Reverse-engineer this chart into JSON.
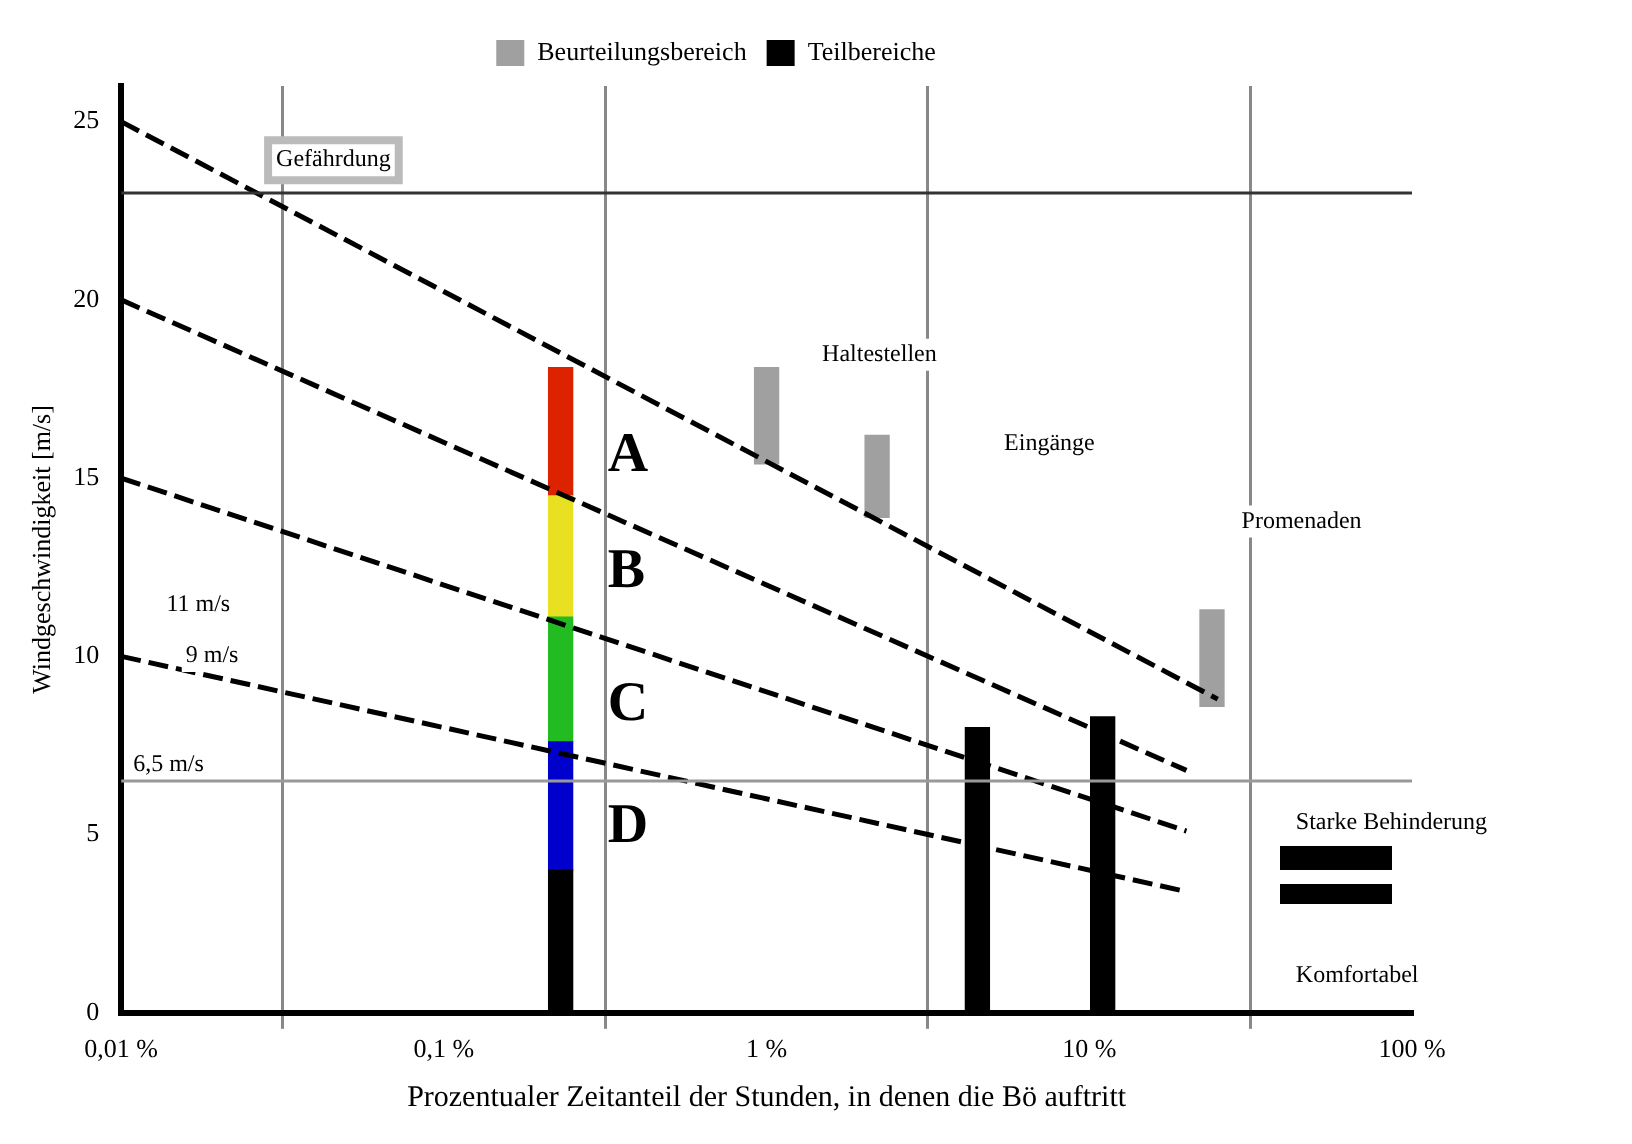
{
  "chart_data": {
    "type": "line",
    "ylabel": "Windgeschwindigkeit [m/s]",
    "xlabel": "Prozentualer Zeitanteil der Stunden, in denen die Bö auftritt",
    "log": "x",
    "xlim": [
      0.01,
      100
    ],
    "xticks": [
      {
        "value": 0.01,
        "label": "0,01 %"
      },
      {
        "value": 0.1,
        "label": "0,1 %"
      },
      {
        "value": 1,
        "label": "1 %"
      },
      {
        "value": 10,
        "label": "10 %"
      },
      {
        "value": 100,
        "label": "100 %"
      }
    ],
    "ylim": [
      0,
      26
    ],
    "yticks": [
      0,
      5,
      10,
      15,
      20,
      25
    ],
    "grid": "x",
    "legend": "top",
    "line_style": "dashed",
    "marker": "none",
    "series": [
      {
        "color": "#000000",
        "x": [
          0.01,
          25
        ],
        "values": [
          25,
          8.8
        ]
      },
      {
        "color": "#000000",
        "x": [
          0.01,
          20
        ],
        "values": [
          20,
          6.8
        ]
      },
      {
        "color": "#000000",
        "x": [
          0.01,
          20
        ],
        "values": [
          15,
          5.1
        ]
      },
      {
        "color": "#000000",
        "x": [
          0.01,
          20
        ],
        "values": [
          10,
          3.4
        ]
      },
      {
        "type": "bar",
        "color": "#000000",
        "x": [
          0.23
        ],
        "base": [
          0
        ],
        "values": [
          4
        ]
      },
      {
        "type": "bar",
        "color": "#0000cc",
        "x": [
          0.23
        ],
        "base": [
          4
        ],
        "values": [
          3.6
        ]
      },
      {
        "type": "bar",
        "color": "#22bb22",
        "x": [
          0.23
        ],
        "base": [
          7.6
        ],
        "values": [
          3.5
        ]
      },
      {
        "type": "bar",
        "color": "#e8e020",
        "x": [
          0.23
        ],
        "base": [
          11.1
        ],
        "values": [
          3.4
        ]
      },
      {
        "type": "bar",
        "color": "#dd2200",
        "x": [
          0.23
        ],
        "base": [
          14.5
        ],
        "values": [
          3.6
        ]
      },
      {
        "type": "bar",
        "name": "Beurteilungsbereich",
        "color": "#a0a0a0",
        "x": [
          1,
          2.2,
          24
        ],
        "base": [
          15.4,
          13.9,
          8.6
        ],
        "values": [
          2.7,
          2.3,
          2.7
        ]
      },
      {
        "type": "bar",
        "name": "Teilbereiche",
        "color": "#000000",
        "x": [
          4.5,
          11
        ],
        "base": [
          0,
          0
        ],
        "values": [
          8,
          8.3
        ]
      }
    ],
    "ref_lines": [
      {
        "axis": "y",
        "value": 23,
        "color": "#333333"
      },
      {
        "axis": "y",
        "value": 6.5,
        "label": "6,5 m/s",
        "color": "#999999"
      }
    ],
    "annotations": [
      "Gefährdung",
      "11 m/s",
      "9 m/s",
      "A",
      "B",
      "C",
      "D",
      "Haltestellen",
      "Eingänge",
      "Promenaden",
      "Starke Behinderung",
      "Komfortabel"
    ]
  }
}
